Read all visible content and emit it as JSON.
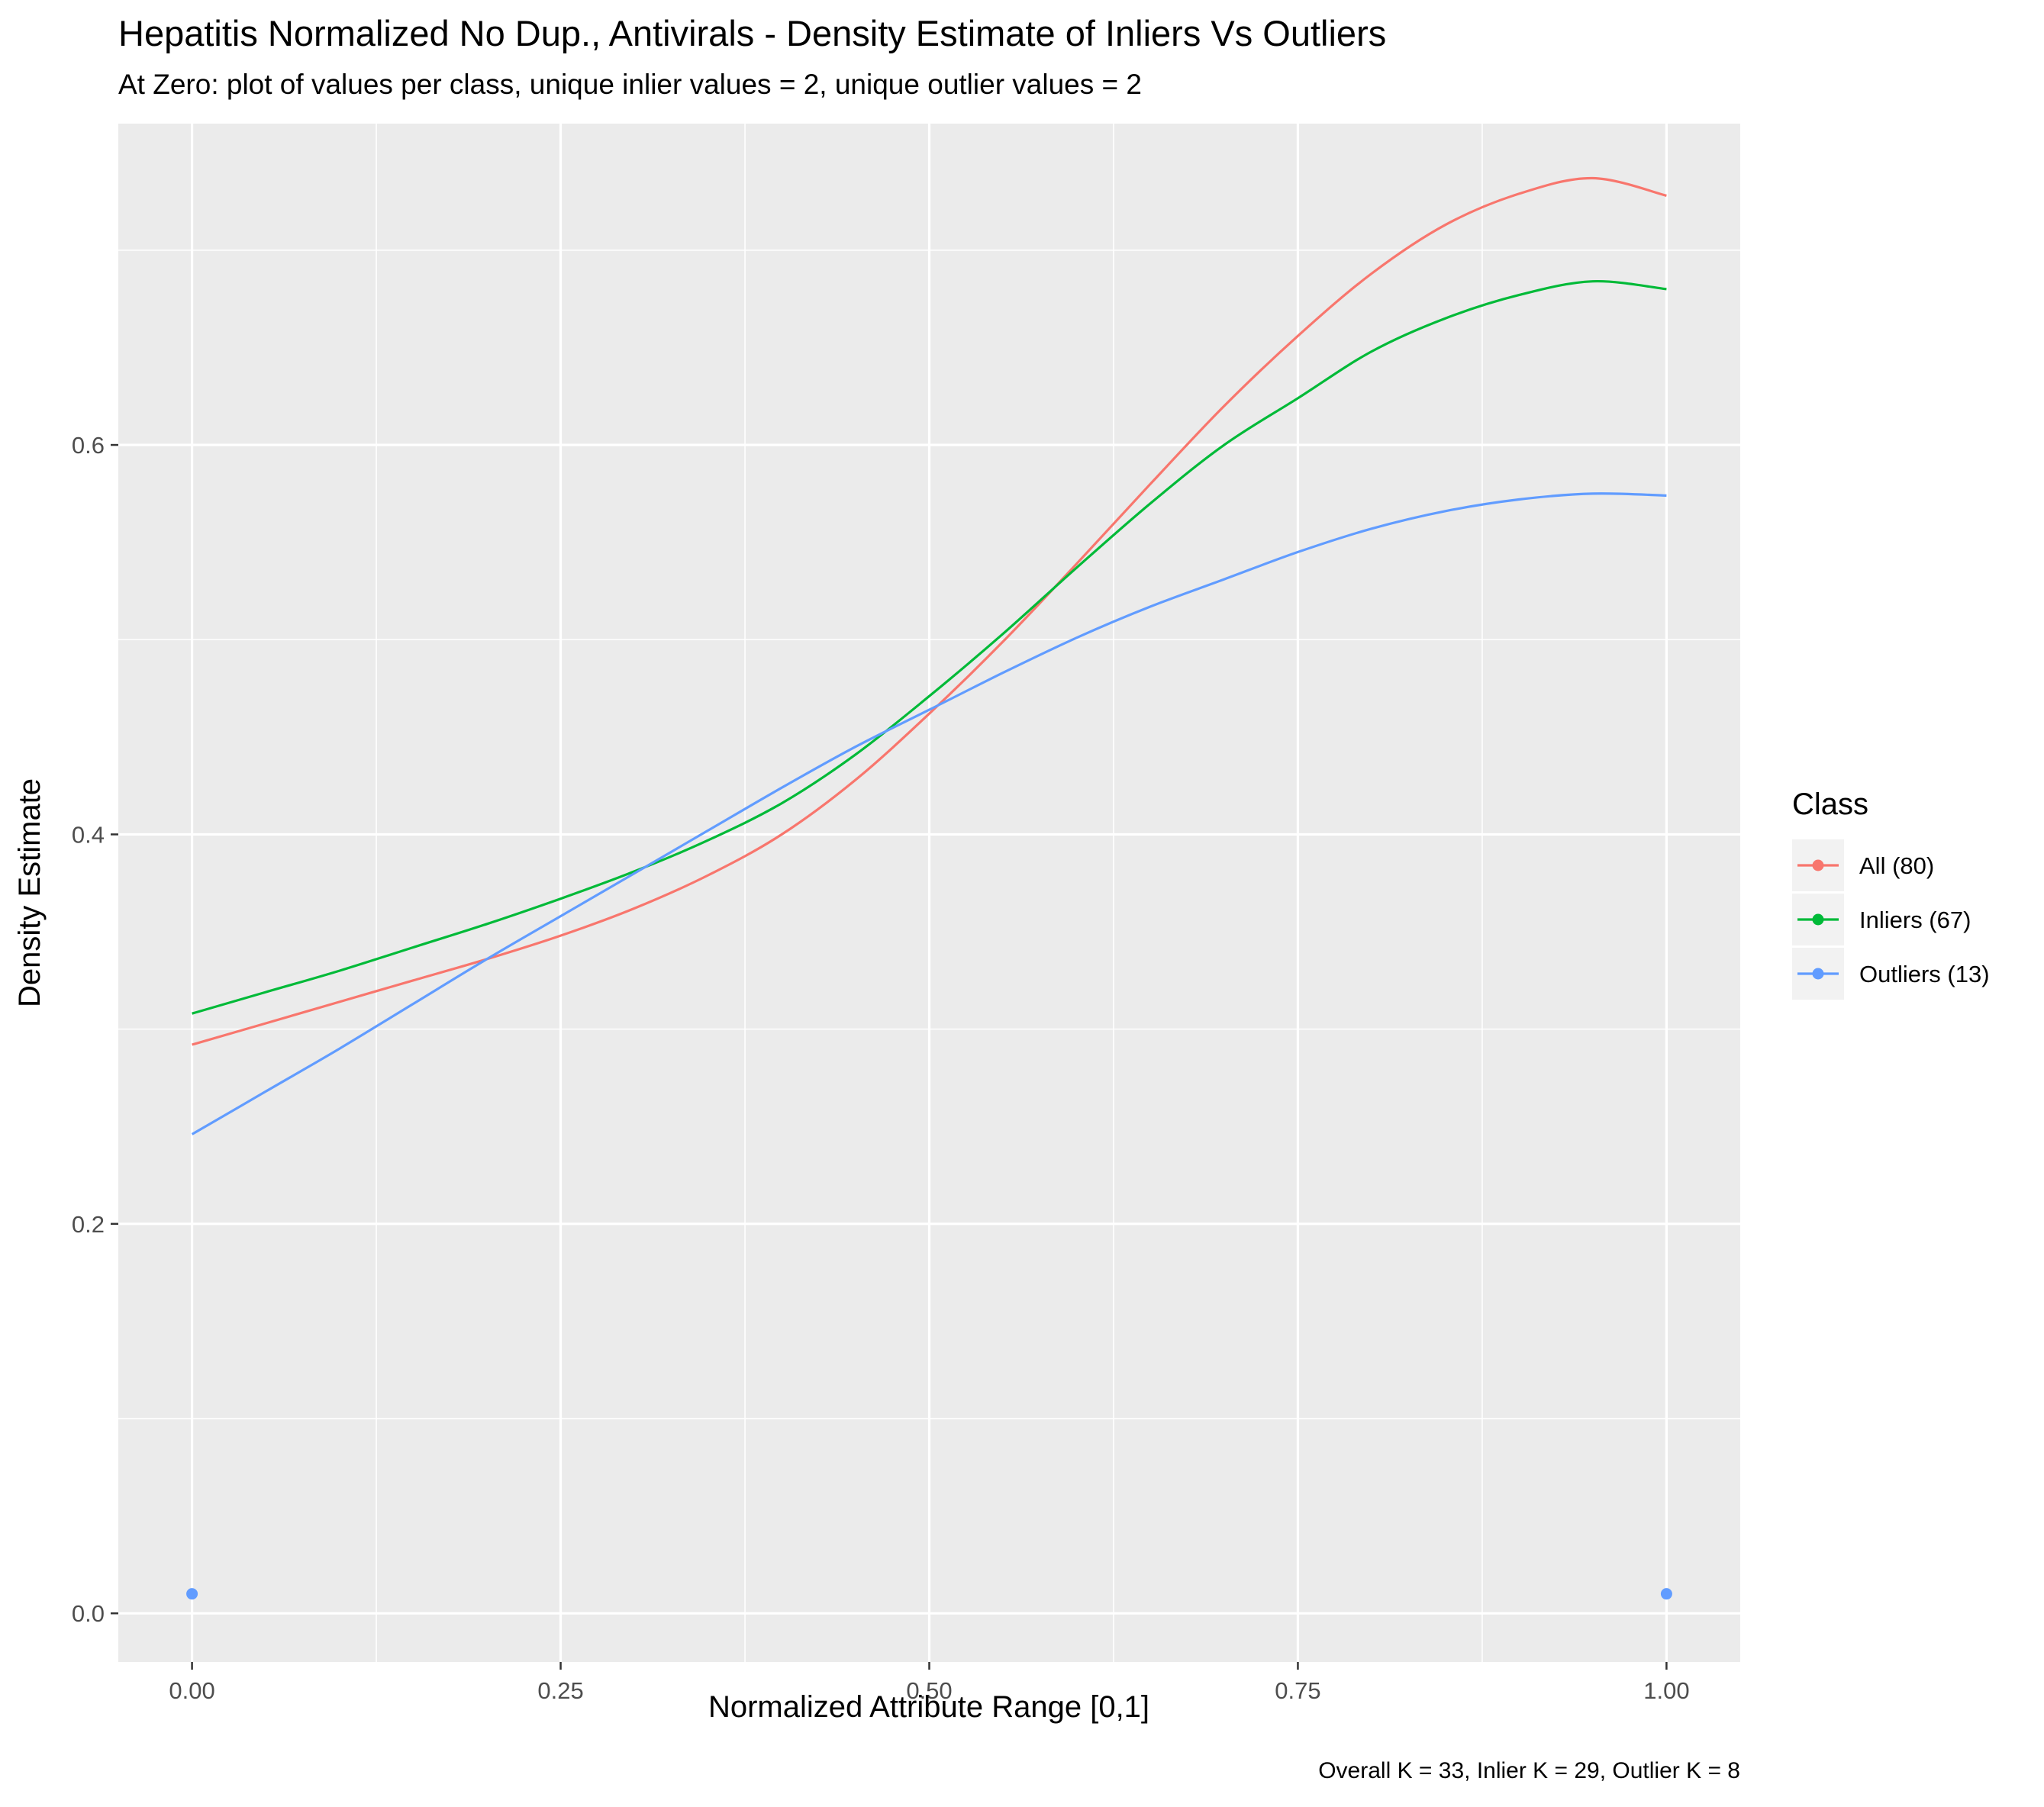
{
  "chart_data": {
    "type": "line",
    "title": "Hepatitis Normalized No Dup., Antivirals - Density Estimate of Inliers Vs Outliers",
    "subtitle": "At Zero: plot of values per class, unique inlier values = 2, unique outlier values = 2",
    "xlabel": "Normalized Attribute Range [0,1]",
    "ylabel": "Density Estimate",
    "caption": "Overall K = 33, Inlier K = 29, Outlier K = 8",
    "xlim": [
      -0.05,
      1.05
    ],
    "ylim": [
      -0.025,
      0.765
    ],
    "x_ticks": [
      0,
      0.25,
      0.5,
      0.75,
      1
    ],
    "x_tick_labels": [
      "0.00",
      "0.25",
      "0.50",
      "0.75",
      "1.00"
    ],
    "y_ticks": [
      0,
      0.2,
      0.4,
      0.6
    ],
    "y_tick_labels": [
      "0.0",
      "0.2",
      "0.4",
      "0.6"
    ],
    "grid": true,
    "legend": {
      "title": "Class",
      "position": "right"
    },
    "series": [
      {
        "name": "All (80)",
        "color": "#F8766D",
        "x": [
          0,
          0.05,
          0.1,
          0.15,
          0.2,
          0.25,
          0.3,
          0.35,
          0.4,
          0.45,
          0.5,
          0.55,
          0.6,
          0.65,
          0.7,
          0.75,
          0.8,
          0.85,
          0.9,
          0.95,
          1
        ],
        "y": [
          0.292,
          0.303,
          0.314,
          0.325,
          0.336,
          0.348,
          0.362,
          0.379,
          0.4,
          0.428,
          0.462,
          0.499,
          0.539,
          0.58,
          0.62,
          0.656,
          0.688,
          0.713,
          0.729,
          0.737,
          0.728
        ]
      },
      {
        "name": "Inliers (67)",
        "color": "#00BA38",
        "x": [
          0,
          0.05,
          0.1,
          0.15,
          0.2,
          0.25,
          0.3,
          0.35,
          0.4,
          0.45,
          0.5,
          0.55,
          0.6,
          0.65,
          0.7,
          0.75,
          0.8,
          0.85,
          0.9,
          0.95,
          1
        ],
        "y": [
          0.308,
          0.319,
          0.33,
          0.342,
          0.354,
          0.367,
          0.381,
          0.397,
          0.416,
          0.441,
          0.471,
          0.503,
          0.537,
          0.57,
          0.6,
          0.624,
          0.648,
          0.665,
          0.677,
          0.684,
          0.68
        ]
      },
      {
        "name": "Outliers (13)",
        "color": "#619CFF",
        "x": [
          0,
          0.05,
          0.1,
          0.15,
          0.2,
          0.25,
          0.3,
          0.35,
          0.4,
          0.45,
          0.5,
          0.55,
          0.6,
          0.65,
          0.7,
          0.75,
          0.8,
          0.85,
          0.9,
          0.95,
          1
        ],
        "y": [
          0.246,
          0.268,
          0.29,
          0.313,
          0.336,
          0.358,
          0.38,
          0.402,
          0.424,
          0.445,
          0.464,
          0.483,
          0.501,
          0.517,
          0.531,
          0.545,
          0.557,
          0.566,
          0.572,
          0.575,
          0.574
        ]
      }
    ],
    "points": [
      {
        "series": "Outliers (13)",
        "x": 0,
        "y": 0.01,
        "color": "#619CFF"
      },
      {
        "series": "Outliers (13)",
        "x": 1,
        "y": 0.01,
        "color": "#619CFF"
      }
    ]
  }
}
